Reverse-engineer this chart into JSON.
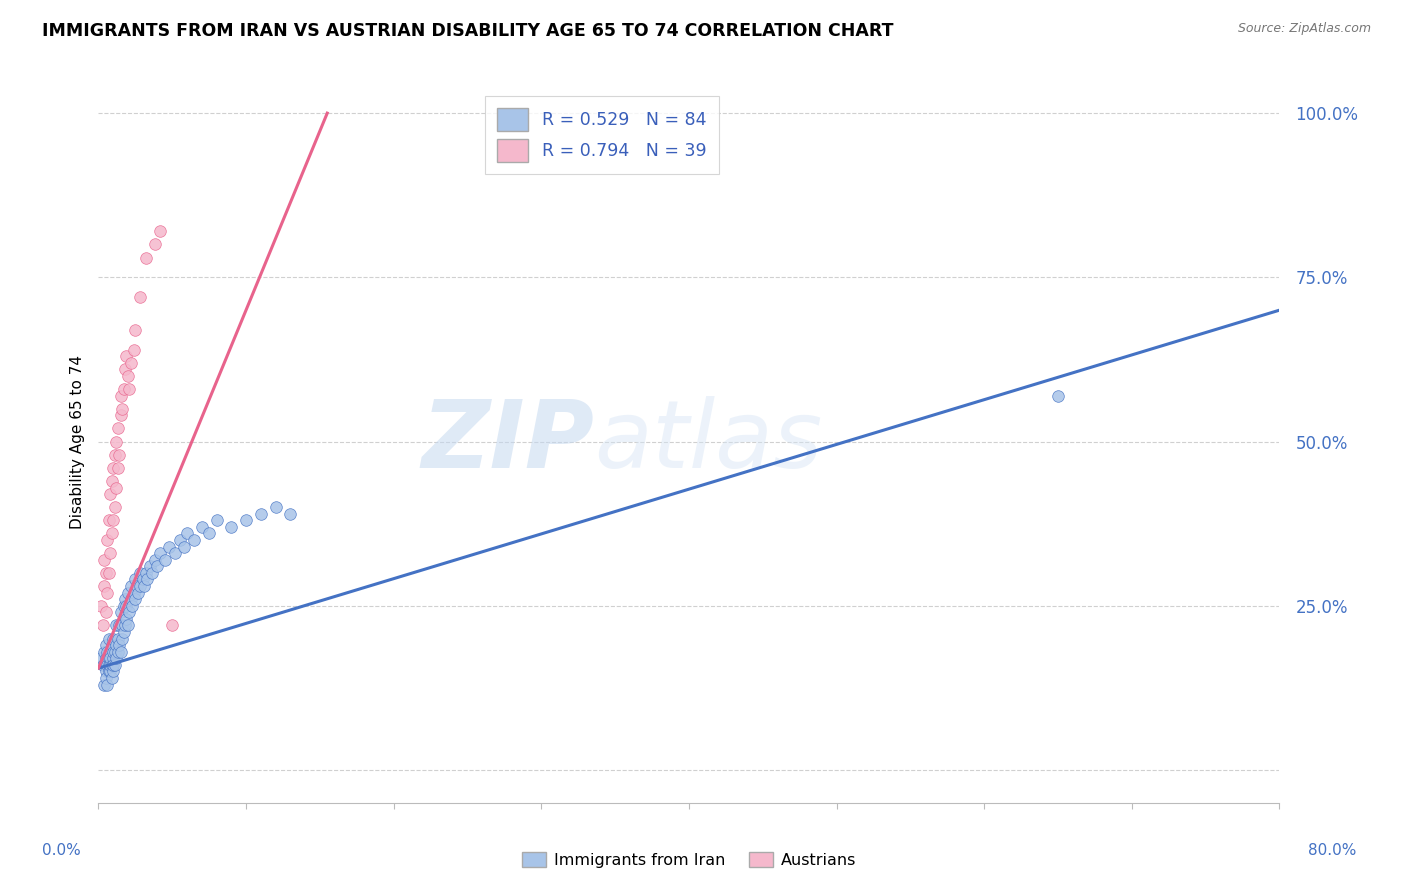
{
  "title": "IMMIGRANTS FROM IRAN VS AUSTRIAN DISABILITY AGE 65 TO 74 CORRELATION CHART",
  "source": "Source: ZipAtlas.com",
  "ylabel": "Disability Age 65 to 74",
  "color_iran": "#a8c4e8",
  "color_austria": "#f5b8cc",
  "color_line_iran": "#4472c4",
  "color_line_austria": "#e8638c",
  "watermark_zip": "ZIP",
  "watermark_atlas": "atlas",
  "legend_label1": "R = 0.529   N = 84",
  "legend_label2": "R = 0.794   N = 39",
  "xmin": 0.0,
  "xmax": 0.8,
  "ymin": -0.05,
  "ymax": 1.05,
  "ytick_positions": [
    0.0,
    0.25,
    0.5,
    0.75,
    1.0
  ],
  "ytick_labels": [
    "",
    "25.0%",
    "50.0%",
    "75.0%",
    "100.0%"
  ],
  "iran_line_x": [
    0.0,
    0.8
  ],
  "iran_line_y": [
    0.155,
    0.7
  ],
  "austria_line_x": [
    0.0,
    0.155
  ],
  "austria_line_y": [
    0.155,
    1.0
  ],
  "iran_scatter_x": [
    0.002,
    0.003,
    0.004,
    0.004,
    0.005,
    0.005,
    0.005,
    0.005,
    0.006,
    0.006,
    0.006,
    0.007,
    0.007,
    0.007,
    0.007,
    0.008,
    0.008,
    0.008,
    0.008,
    0.009,
    0.009,
    0.009,
    0.01,
    0.01,
    0.01,
    0.01,
    0.01,
    0.011,
    0.011,
    0.012,
    0.012,
    0.012,
    0.013,
    0.013,
    0.014,
    0.014,
    0.015,
    0.015,
    0.016,
    0.016,
    0.017,
    0.017,
    0.018,
    0.018,
    0.019,
    0.019,
    0.02,
    0.02,
    0.021,
    0.022,
    0.022,
    0.023,
    0.024,
    0.025,
    0.025,
    0.026,
    0.027,
    0.028,
    0.028,
    0.03,
    0.031,
    0.032,
    0.033,
    0.035,
    0.036,
    0.038,
    0.04,
    0.042,
    0.045,
    0.048,
    0.052,
    0.055,
    0.058,
    0.06,
    0.065,
    0.07,
    0.075,
    0.08,
    0.09,
    0.1,
    0.11,
    0.12,
    0.13,
    0.65
  ],
  "iran_scatter_y": [
    0.17,
    0.16,
    0.13,
    0.18,
    0.15,
    0.17,
    0.14,
    0.19,
    0.16,
    0.18,
    0.13,
    0.15,
    0.17,
    0.16,
    0.2,
    0.15,
    0.16,
    0.18,
    0.17,
    0.14,
    0.16,
    0.19,
    0.15,
    0.17,
    0.16,
    0.18,
    0.2,
    0.16,
    0.18,
    0.17,
    0.19,
    0.22,
    0.18,
    0.2,
    0.19,
    0.22,
    0.18,
    0.24,
    0.2,
    0.22,
    0.21,
    0.25,
    0.22,
    0.26,
    0.23,
    0.25,
    0.22,
    0.27,
    0.24,
    0.26,
    0.28,
    0.25,
    0.27,
    0.26,
    0.29,
    0.28,
    0.27,
    0.3,
    0.28,
    0.29,
    0.28,
    0.3,
    0.29,
    0.31,
    0.3,
    0.32,
    0.31,
    0.33,
    0.32,
    0.34,
    0.33,
    0.35,
    0.34,
    0.36,
    0.35,
    0.37,
    0.36,
    0.38,
    0.37,
    0.38,
    0.39,
    0.4,
    0.39,
    0.57
  ],
  "austria_scatter_x": [
    0.002,
    0.003,
    0.004,
    0.004,
    0.005,
    0.005,
    0.006,
    0.006,
    0.007,
    0.007,
    0.008,
    0.008,
    0.009,
    0.009,
    0.01,
    0.01,
    0.011,
    0.011,
    0.012,
    0.012,
    0.013,
    0.013,
    0.014,
    0.015,
    0.015,
    0.016,
    0.017,
    0.018,
    0.019,
    0.02,
    0.021,
    0.022,
    0.024,
    0.025,
    0.028,
    0.032,
    0.038,
    0.042,
    0.05
  ],
  "austria_scatter_y": [
    0.25,
    0.22,
    0.28,
    0.32,
    0.24,
    0.3,
    0.27,
    0.35,
    0.3,
    0.38,
    0.33,
    0.42,
    0.36,
    0.44,
    0.38,
    0.46,
    0.4,
    0.48,
    0.43,
    0.5,
    0.46,
    0.52,
    0.48,
    0.54,
    0.57,
    0.55,
    0.58,
    0.61,
    0.63,
    0.6,
    0.58,
    0.62,
    0.64,
    0.67,
    0.72,
    0.78,
    0.8,
    0.82,
    0.22
  ]
}
